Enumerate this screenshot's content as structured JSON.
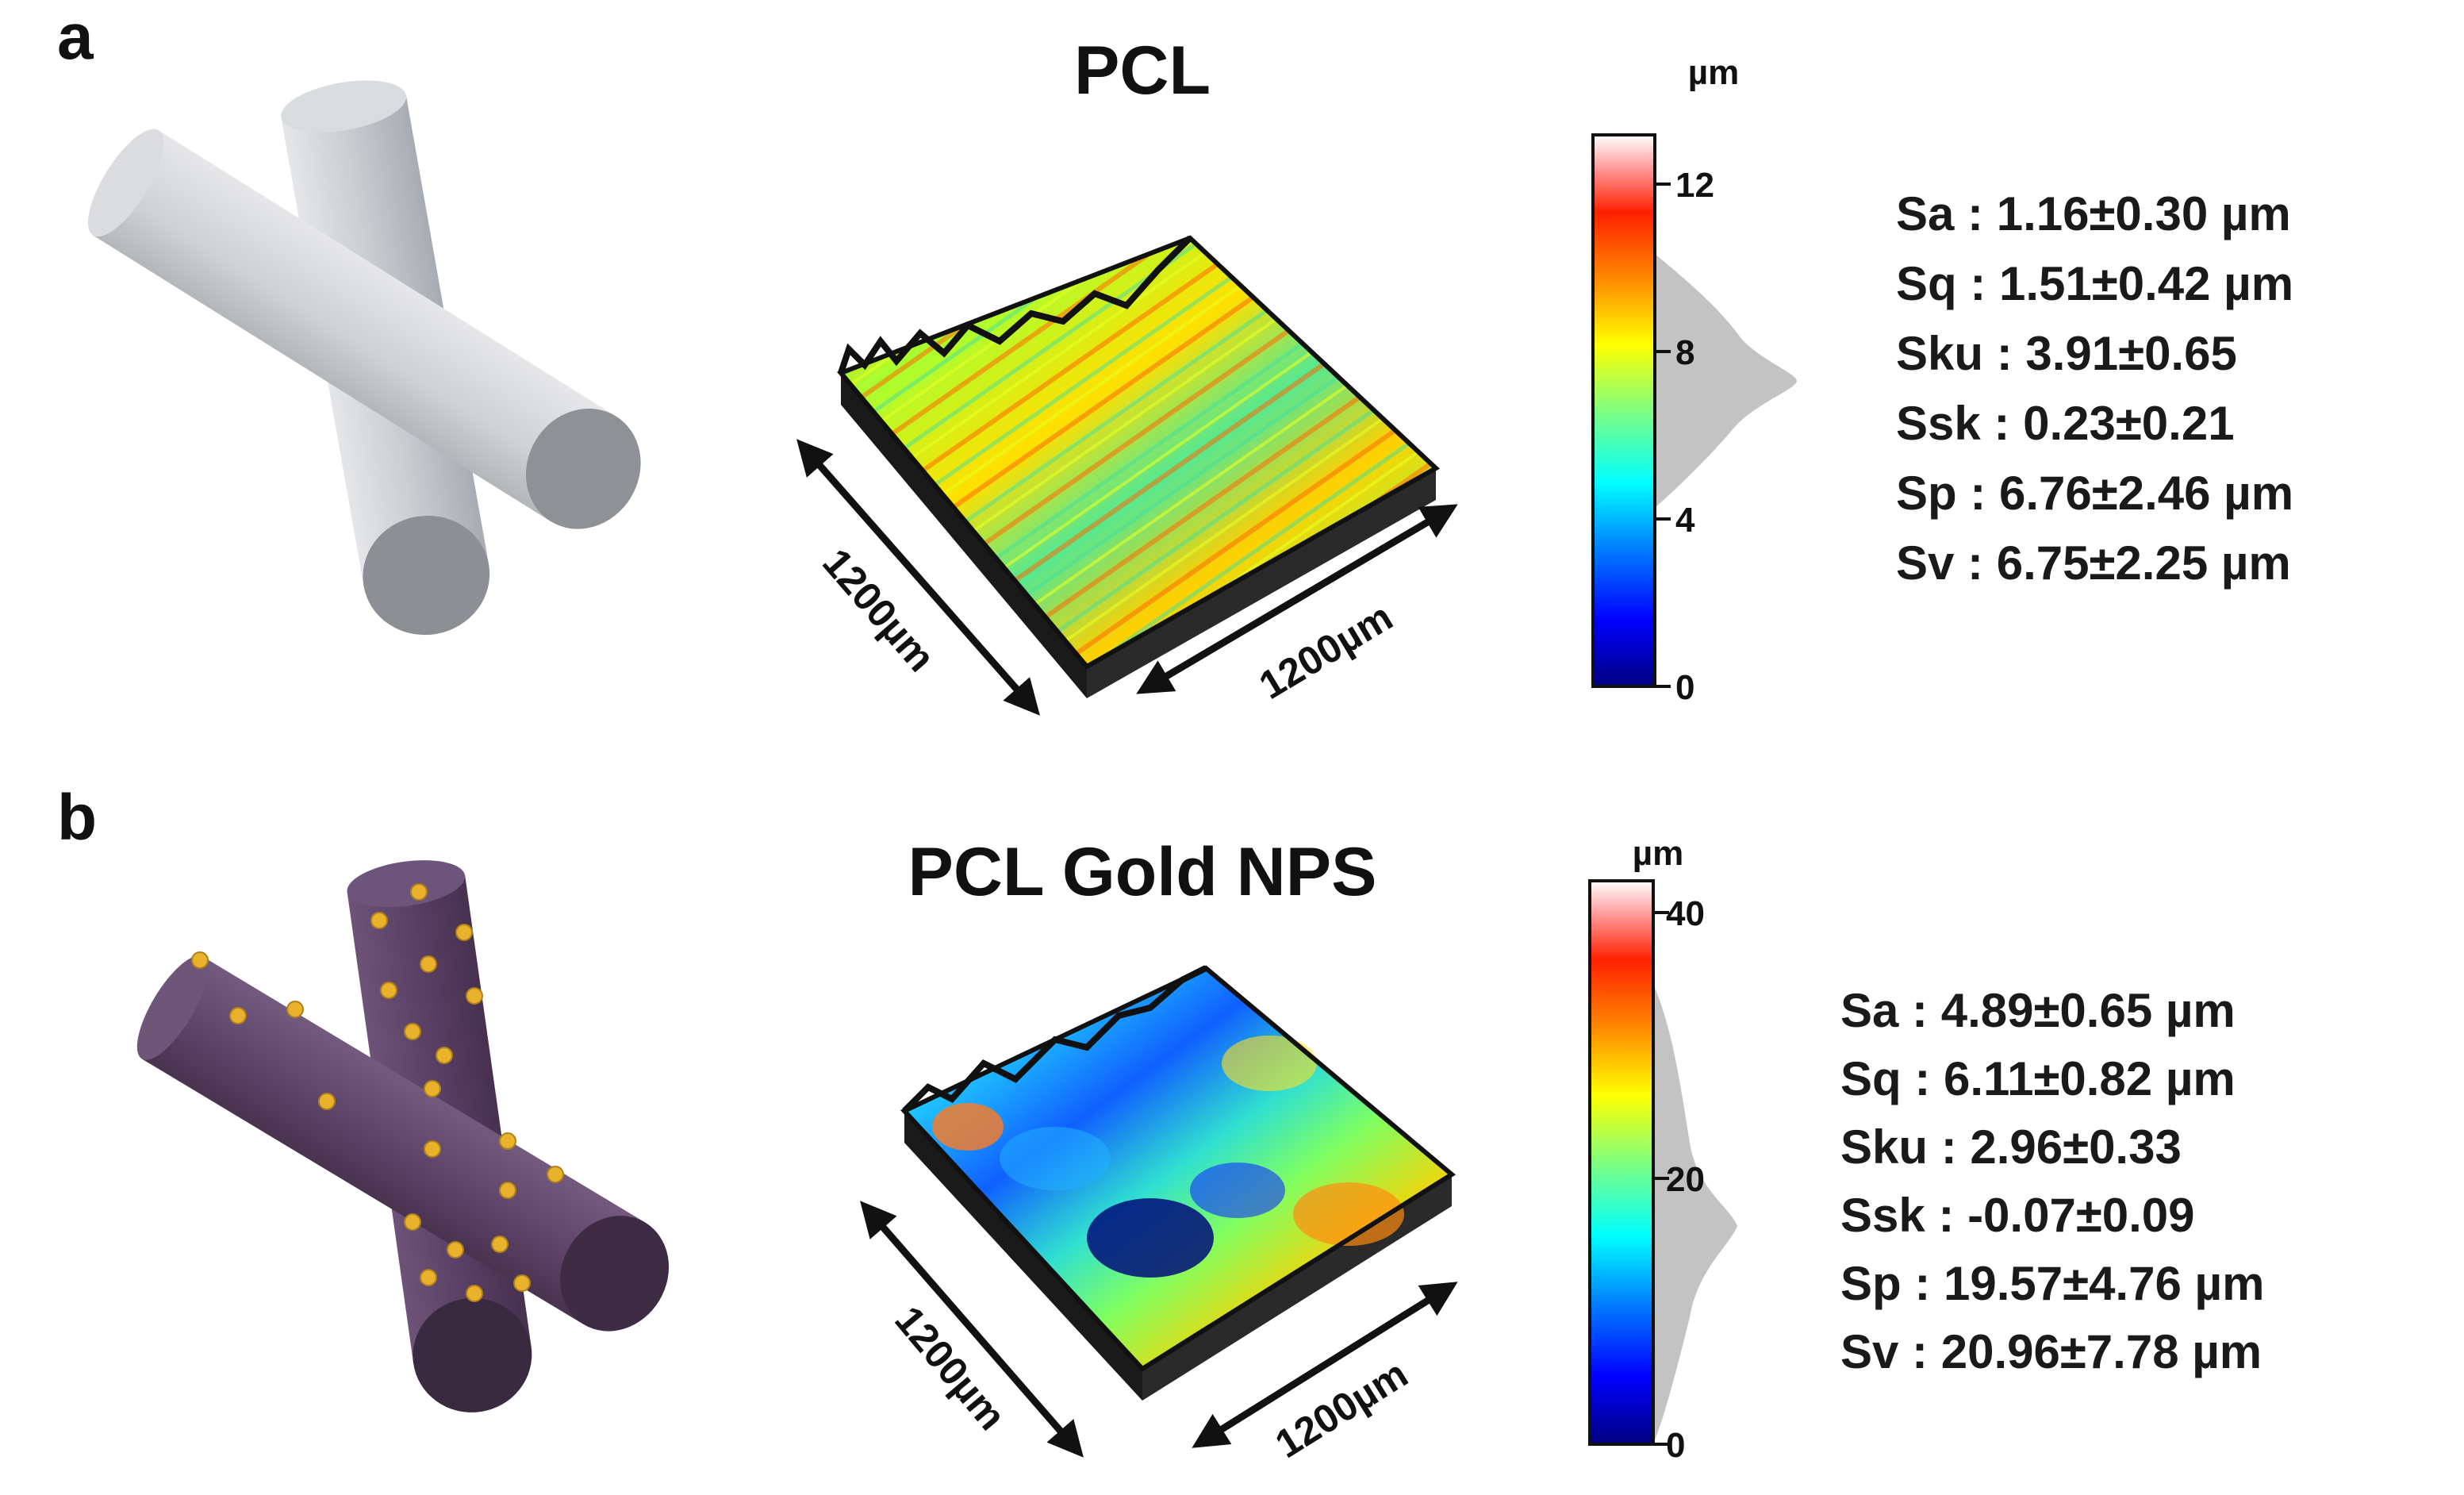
{
  "panel_a": {
    "label": "a",
    "title": "PCL",
    "colorbar": {
      "unit": "µm",
      "ticks": [
        "12",
        "8",
        "4",
        "0"
      ]
    },
    "dimension_x": "1200µm",
    "dimension_y": "1200µm",
    "stats": [
      "Sa : 1.16±0.30 µm",
      "Sq : 1.51±0.42 µm",
      "Sku : 3.91±0.65",
      "Ssk : 0.23±0.21",
      "Sp : 6.76±2.46 µm",
      "Sv : 6.75±2.25 µm"
    ],
    "fiber_color": "#c9cdd2"
  },
  "panel_b": {
    "label": "b",
    "title": "PCL Gold NPS",
    "colorbar": {
      "unit": "µm",
      "ticks": [
        "40",
        "20",
        "0"
      ]
    },
    "dimension_x": "1200µm",
    "dimension_y": "1200µm",
    "stats": [
      "Sa : 4.89±0.65 µm",
      "Sq : 6.11±0.82 µm",
      "Sku : 2.96±0.33",
      "Ssk : -0.07±0.09",
      "Sp : 19.57±4.76 µm",
      "Sv : 20.96±7.78 µm"
    ],
    "fiber_color": "#5c4166",
    "particle_color": "#e8b22c"
  }
}
